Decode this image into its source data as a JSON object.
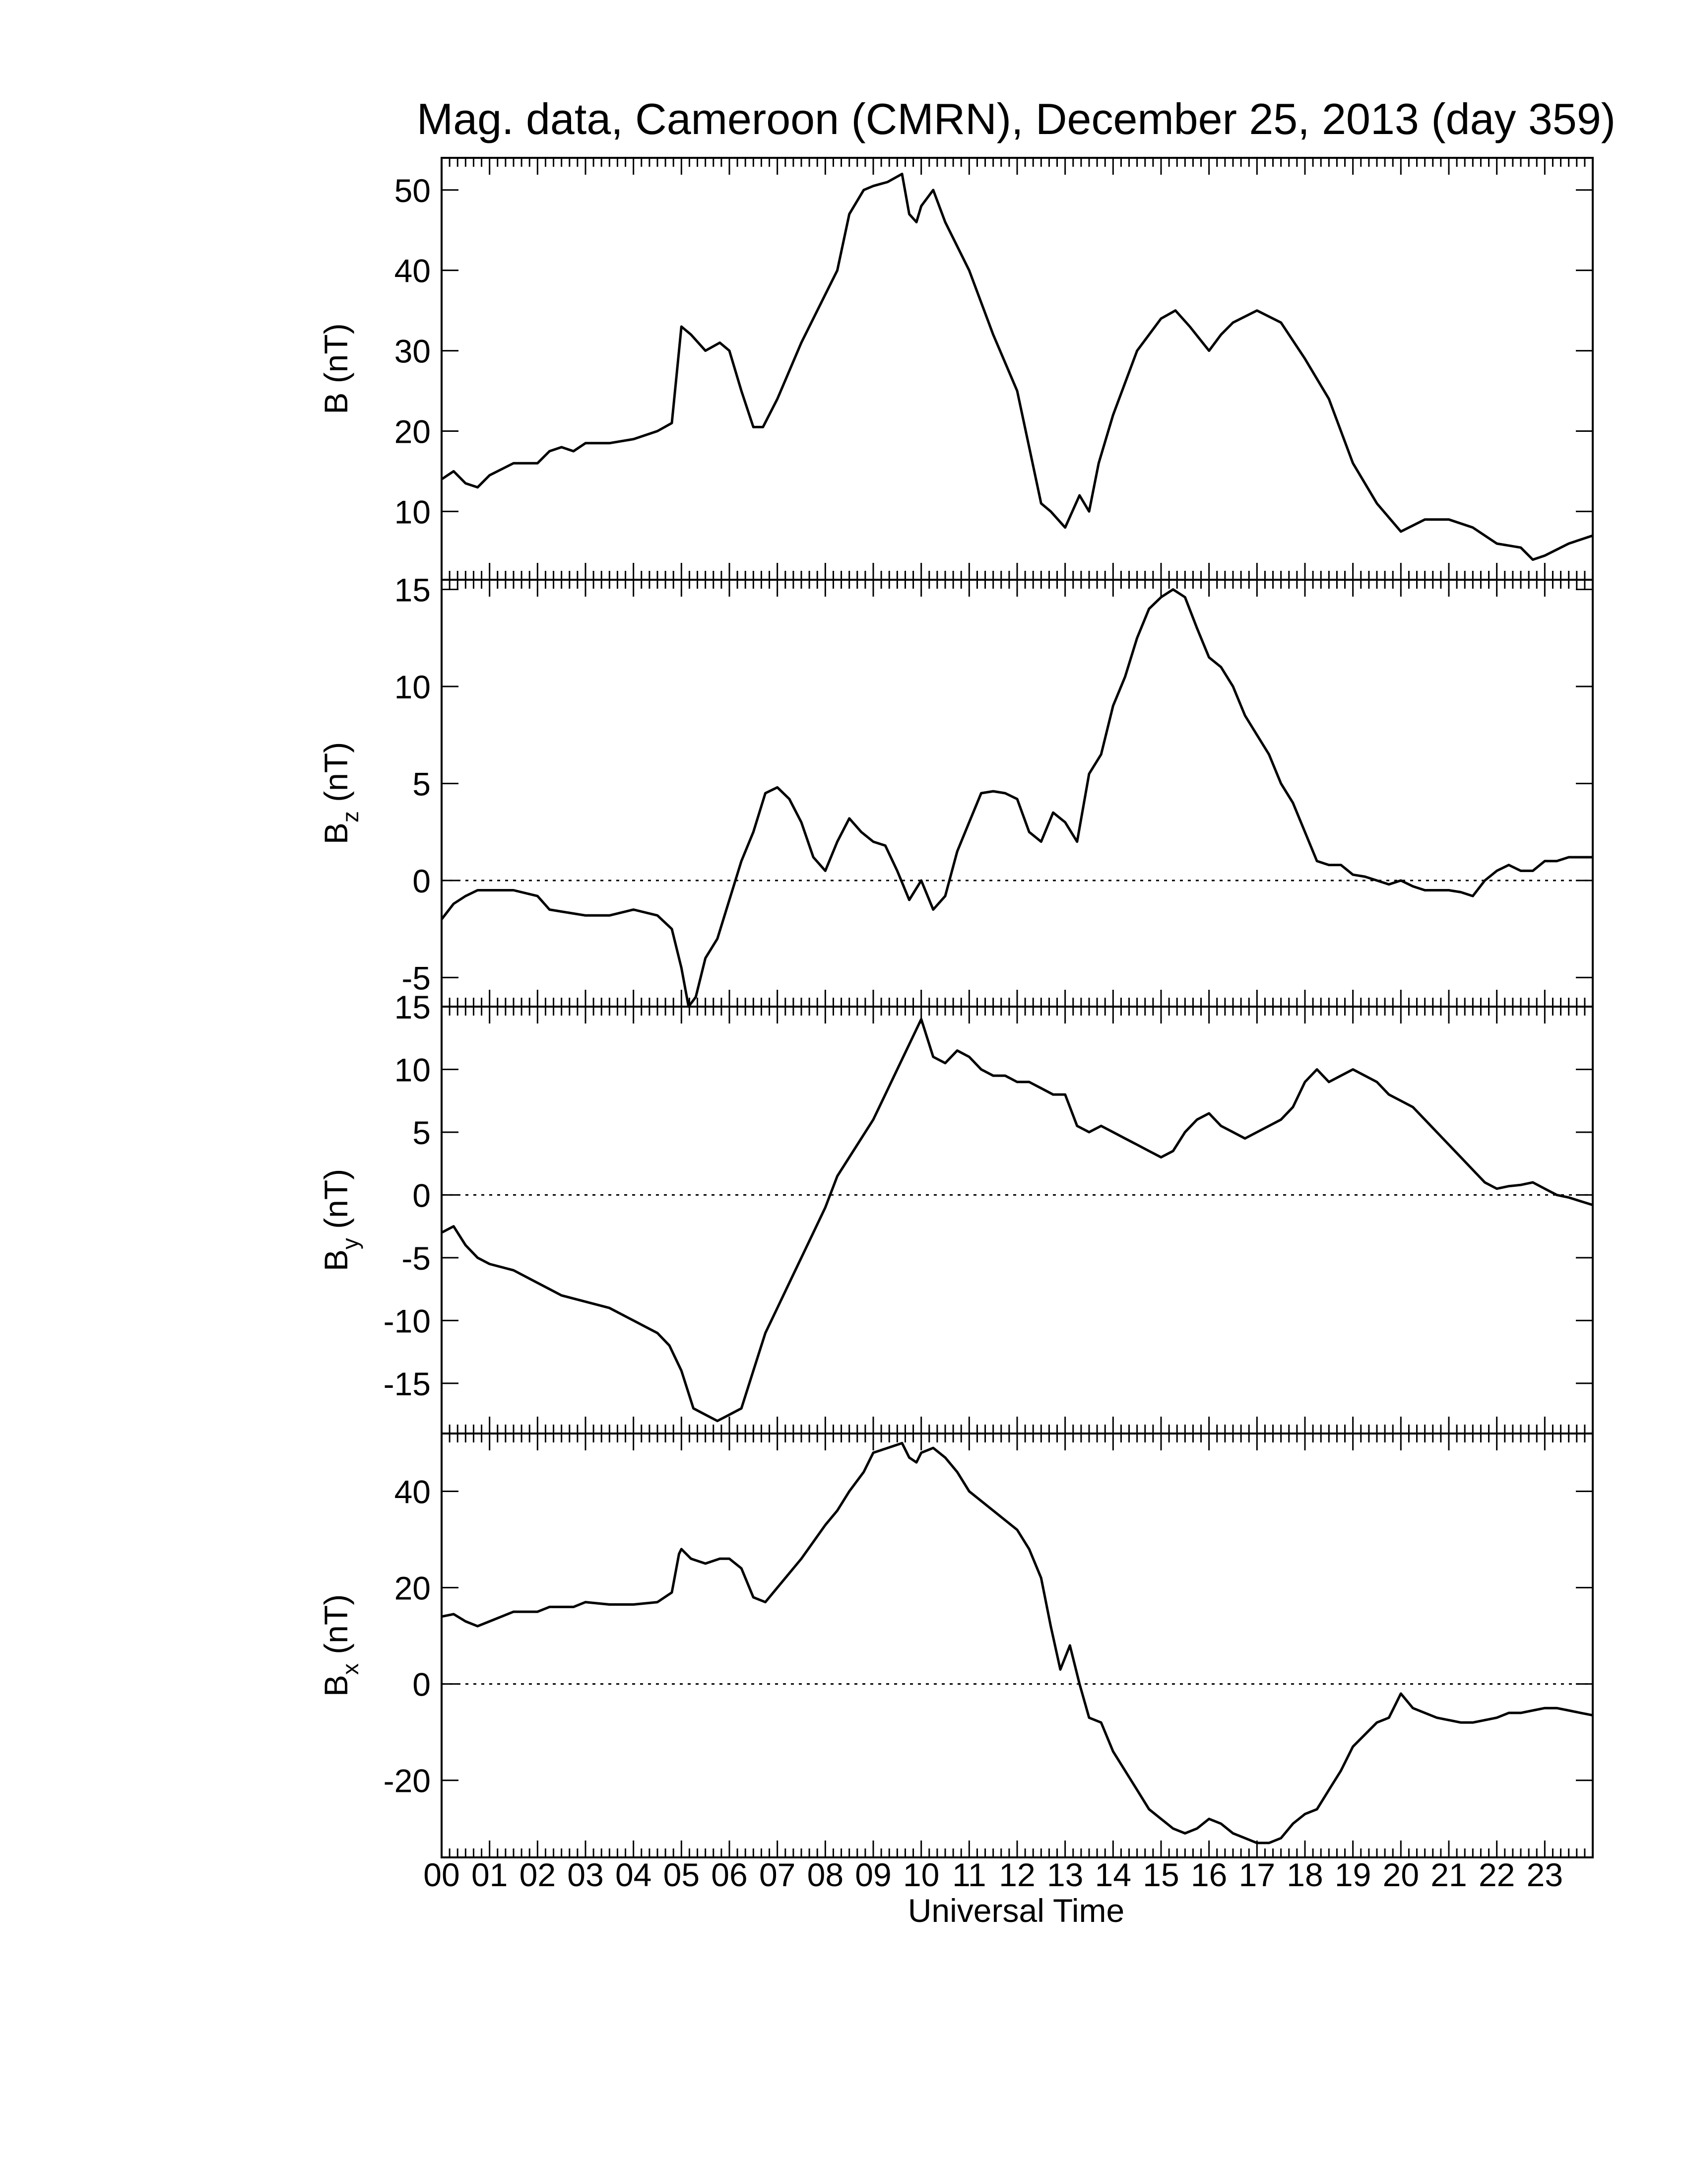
{
  "chart_data": {
    "type": "line",
    "title": "Mag. data, Cameroon (CMRN), December 25, 2013 (day 359)",
    "xlabel": "Universal Time",
    "xlim": [
      0,
      24
    ],
    "x_tick_labels": [
      "00",
      "01",
      "02",
      "03",
      "04",
      "05",
      "06",
      "07",
      "08",
      "09",
      "10",
      "11",
      "12",
      "13",
      "14",
      "15",
      "16",
      "17",
      "18",
      "19",
      "20",
      "21",
      "22",
      "23"
    ],
    "grid": false,
    "panels": [
      {
        "ylabel_main": "B",
        "ylabel_sub": "",
        "ylabel_unit": "(nT)",
        "ylim": [
          1.5,
          54
        ],
        "yticks": [
          10,
          20,
          30,
          40,
          50
        ],
        "ytick_labels": [
          "10",
          "20",
          "30",
          "40",
          "50"
        ],
        "zero_line": false,
        "series": [
          {
            "x": [
              0,
              0.25,
              0.5,
              0.75,
              1,
              1.5,
              2,
              2.25,
              2.5,
              2.75,
              3,
              3.5,
              4,
              4.5,
              4.8,
              4.95,
              5,
              5.2,
              5.5,
              5.8,
              6,
              6.25,
              6.5,
              6.7,
              7,
              7.5,
              8,
              8.25,
              8.5,
              8.8,
              9,
              9.3,
              9.6,
              9.75,
              9.9,
              10,
              10.25,
              10.5,
              11,
              11.5,
              12,
              12.25,
              12.5,
              12.7,
              13,
              13.3,
              13.5,
              13.7,
              14,
              14.5,
              15,
              15.3,
              15.6,
              16,
              16.25,
              16.5,
              17,
              17.5,
              18,
              18.5,
              19,
              19.5,
              20,
              20.5,
              21,
              21.5,
              22,
              22.5,
              22.75,
              23,
              23.5,
              24
            ],
            "y": [
              14,
              15,
              13.5,
              13,
              14.5,
              16,
              16,
              17.5,
              18,
              17.5,
              18.5,
              18.5,
              19,
              20,
              21,
              30,
              33,
              32,
              30,
              31,
              30,
              25,
              20.5,
              20.5,
              24,
              31,
              37,
              40,
              47,
              50,
              50.5,
              51,
              52,
              47,
              46,
              48,
              50,
              46,
              40,
              32,
              25,
              18,
              11,
              10,
              8,
              12,
              10,
              16,
              22,
              30,
              34,
              35,
              33,
              30,
              32,
              33.5,
              35,
              33.5,
              29,
              24,
              16,
              11,
              7.5,
              9,
              9,
              8,
              6,
              5.5,
              4,
              4.5,
              6,
              7
            ]
          }
        ]
      },
      {
        "ylabel_main": "B",
        "ylabel_sub": "z",
        "ylabel_unit": "(nT)",
        "ylim": [
          -6.5,
          15.5
        ],
        "yticks": [
          -5,
          0,
          5,
          10,
          15
        ],
        "ytick_labels": [
          "-5",
          "0",
          "5",
          "10",
          "15"
        ],
        "zero_line": true,
        "series": [
          {
            "x": [
              0,
              0.25,
              0.5,
              0.75,
              1,
              1.5,
              2,
              2.25,
              2.5,
              3,
              3.5,
              4,
              4.5,
              4.8,
              5,
              5.15,
              5.3,
              5.5,
              5.75,
              6,
              6.25,
              6.5,
              6.75,
              7,
              7.25,
              7.5,
              7.75,
              8,
              8.25,
              8.5,
              8.75,
              9,
              9.25,
              9.5,
              9.75,
              10,
              10.25,
              10.5,
              10.75,
              11,
              11.25,
              11.5,
              11.75,
              12,
              12.25,
              12.5,
              12.75,
              13,
              13.25,
              13.5,
              13.75,
              14,
              14.25,
              14.5,
              14.75,
              15,
              15.25,
              15.5,
              15.75,
              16,
              16.25,
              16.5,
              16.75,
              17,
              17.25,
              17.5,
              17.75,
              18,
              18.25,
              18.5,
              18.75,
              19,
              19.25,
              19.5,
              19.75,
              20,
              20.25,
              20.5,
              20.75,
              21,
              21.25,
              21.5,
              21.75,
              22,
              22.25,
              22.5,
              22.75,
              23,
              23.25,
              23.5,
              23.75,
              24
            ],
            "y": [
              -2,
              -1.2,
              -0.8,
              -0.5,
              -0.5,
              -0.5,
              -0.8,
              -1.5,
              -1.6,
              -1.8,
              -1.8,
              -1.5,
              -1.8,
              -2.5,
              -4.5,
              -6.5,
              -6,
              -4,
              -3,
              -1,
              1,
              2.5,
              4.5,
              4.8,
              4.2,
              3,
              1.2,
              0.5,
              2,
              3.2,
              2.5,
              2,
              1.8,
              0.5,
              -1,
              0,
              -1.5,
              -0.8,
              1.5,
              3,
              4.5,
              4.6,
              4.5,
              4.2,
              2.5,
              2,
              3.5,
              3,
              2,
              5.5,
              6.5,
              9,
              10.5,
              12.5,
              14,
              14.6,
              15,
              14.6,
              13,
              11.5,
              11,
              10,
              8.5,
              7.5,
              6.5,
              5,
              4,
              2.5,
              1,
              0.8,
              0.8,
              0.3,
              0.2,
              0,
              -0.2,
              0,
              -0.3,
              -0.5,
              -0.5,
              -0.5,
              -0.6,
              -0.8,
              0,
              0.5,
              0.8,
              0.5,
              0.5,
              1,
              1,
              1.2,
              1.2,
              1.2
            ]
          }
        ]
      },
      {
        "ylabel_main": "B",
        "ylabel_sub": "y",
        "ylabel_unit": "(nT)",
        "ylim": [
          -19,
          15
        ],
        "yticks": [
          -15,
          -10,
          -5,
          0,
          5,
          10,
          15
        ],
        "ytick_labels": [
          "-15",
          "-10",
          "-5",
          "0",
          "5",
          "10",
          "15"
        ],
        "zero_line": true,
        "series": [
          {
            "x": [
              0,
              0.25,
              0.5,
              0.75,
              1,
              1.5,
              2,
              2.25,
              2.5,
              3,
              3.5,
              4,
              4.5,
              4.75,
              5,
              5.25,
              5.5,
              5.75,
              6,
              6.25,
              6.5,
              6.75,
              7,
              7.25,
              7.5,
              7.75,
              8,
              8.25,
              8.5,
              8.75,
              9,
              9.25,
              9.5,
              9.75,
              10,
              10.25,
              10.5,
              10.75,
              11,
              11.25,
              11.5,
              11.75,
              12,
              12.25,
              12.5,
              12.75,
              13,
              13.25,
              13.5,
              13.75,
              14,
              14.25,
              14.5,
              14.75,
              15,
              15.25,
              15.5,
              15.75,
              16,
              16.25,
              16.5,
              16.75,
              17,
              17.25,
              17.5,
              17.75,
              18,
              18.25,
              18.5,
              18.75,
              19,
              19.25,
              19.5,
              19.75,
              20,
              20.25,
              20.5,
              20.75,
              21,
              21.25,
              21.5,
              21.75,
              22,
              22.25,
              22.5,
              22.75,
              23,
              23.25,
              23.5,
              23.75,
              24
            ],
            "y": [
              -3,
              -2.5,
              -4,
              -5,
              -5.5,
              -6,
              -7,
              -7.5,
              -8,
              -8.5,
              -9,
              -10,
              -11,
              -12,
              -14,
              -17,
              -17.5,
              -18,
              -17.5,
              -17,
              -14,
              -11,
              -9,
              -7,
              -5,
              -3,
              -1,
              1.5,
              3,
              4.5,
              6,
              8,
              10,
              12,
              14,
              11,
              10.5,
              11.5,
              11,
              10,
              9.5,
              9.5,
              9,
              9,
              8.5,
              8,
              8,
              5.5,
              5,
              5.5,
              5,
              4.5,
              4,
              3.5,
              3,
              3.5,
              5,
              6,
              6.5,
              5.5,
              5,
              4.5,
              5,
              5.5,
              6,
              7,
              9,
              10,
              9,
              9.5,
              10,
              9.5,
              9,
              8,
              7.5,
              7,
              6,
              5,
              4,
              3,
              2,
              1,
              0.5,
              0.7,
              0.8,
              1,
              0.5,
              0,
              -0.2,
              -0.5,
              -0.8
            ]
          }
        ]
      },
      {
        "ylabel_main": "B",
        "ylabel_sub": "x",
        "ylabel_unit": "(nT)",
        "ylim": [
          -36,
          52
        ],
        "yticks": [
          -20,
          0,
          20,
          40
        ],
        "ytick_labels": [
          "-20",
          "0",
          "20",
          "40"
        ],
        "zero_line": true,
        "series": [
          {
            "x": [
              0,
              0.25,
              0.5,
              0.75,
              1,
              1.5,
              2,
              2.25,
              2.5,
              2.75,
              3,
              3.5,
              4,
              4.5,
              4.8,
              4.95,
              5,
              5.2,
              5.5,
              5.8,
              6,
              6.25,
              6.5,
              6.75,
              7,
              7.5,
              8,
              8.25,
              8.5,
              8.8,
              9,
              9.3,
              9.6,
              9.75,
              9.9,
              10,
              10.25,
              10.5,
              10.75,
              11,
              11.5,
              12,
              12.25,
              12.5,
              12.7,
              12.9,
              13.1,
              13.3,
              13.5,
              13.75,
              14,
              14.25,
              14.5,
              14.75,
              15,
              15.25,
              15.5,
              15.75,
              16,
              16.25,
              16.5,
              16.75,
              17,
              17.25,
              17.5,
              17.75,
              18,
              18.25,
              18.5,
              18.75,
              19,
              19.5,
              19.75,
              19.9,
              20,
              20.25,
              20.5,
              20.75,
              21,
              21.25,
              21.5,
              21.75,
              22,
              22.25,
              22.5,
              22.75,
              23,
              23.25,
              23.5,
              23.75,
              24
            ],
            "y": [
              14,
              14.5,
              13,
              12,
              13,
              15,
              15,
              16,
              16,
              16,
              17,
              16.5,
              16.5,
              17,
              19,
              27,
              28,
              26,
              25,
              26,
              26,
              24,
              18,
              17,
              20,
              26,
              33,
              36,
              40,
              44,
              48,
              49,
              50,
              47,
              46,
              48,
              49,
              47,
              44,
              40,
              36,
              32,
              28,
              22,
              12,
              3,
              8,
              0,
              -7,
              -8,
              -14,
              -18,
              -22,
              -26,
              -28,
              -30,
              -31,
              -30,
              -28,
              -29,
              -31,
              -32,
              -33,
              -33,
              -32,
              -29,
              -27,
              -26,
              -22,
              -18,
              -13,
              -8,
              -7,
              -4,
              -2,
              -5,
              -6,
              -7,
              -7.5,
              -8,
              -8,
              -7.5,
              -7,
              -6,
              -6,
              -5.5,
              -5,
              -5,
              -5.5,
              -6,
              -6.5
            ]
          }
        ]
      }
    ]
  }
}
